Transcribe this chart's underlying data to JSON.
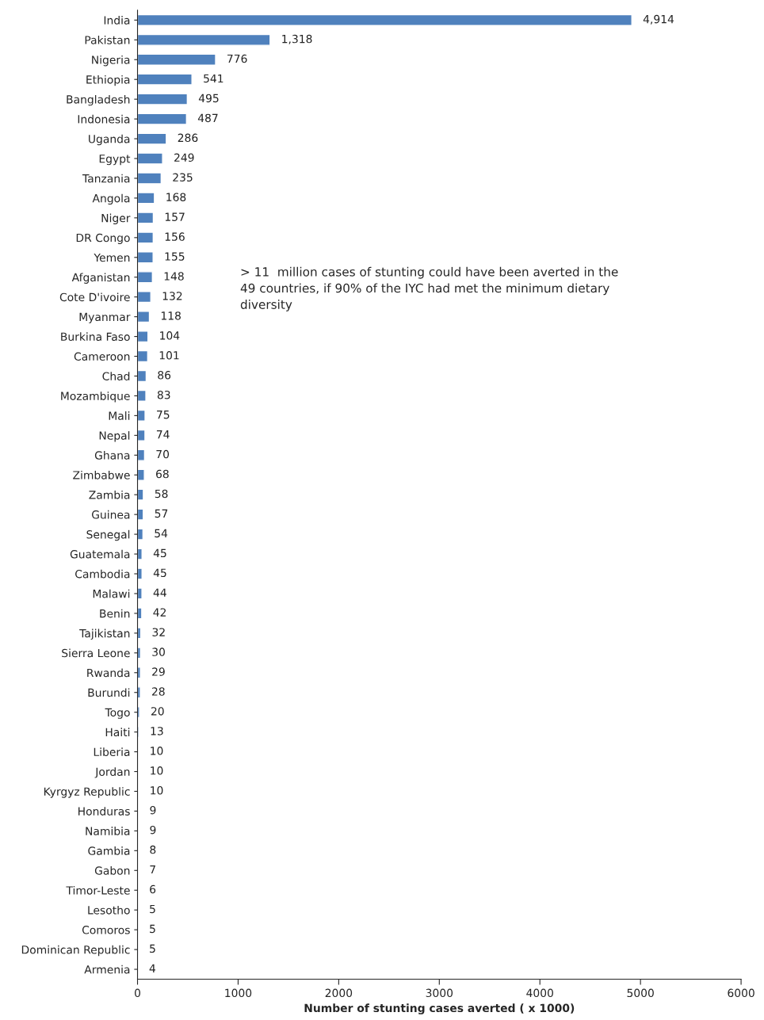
{
  "chart_data": {
    "type": "bar",
    "orientation": "horizontal",
    "xlabel": "Number of stunting cases averted ( x 1000)",
    "categories": [
      "India",
      "Pakistan",
      "Nigeria",
      "Ethiopia",
      "Bangladesh",
      "Indonesia",
      "Uganda",
      "Egypt",
      "Tanzania",
      "Angola",
      "Niger",
      "DR Congo",
      "Yemen",
      "Afganistan",
      "Cote D'ivoire",
      "Myanmar",
      "Burkina Faso",
      "Cameroon",
      "Chad",
      "Mozambique",
      "Mali",
      "Nepal",
      "Ghana",
      "Zimbabwe",
      "Zambia",
      "Guinea",
      "Senegal",
      "Guatemala",
      "Cambodia",
      "Malawi",
      "Benin",
      "Tajikistan",
      "Sierra Leone",
      "Rwanda",
      "Burundi",
      "Togo",
      "Haiti",
      "Liberia",
      "Jordan",
      "Kyrgyz Republic",
      "Honduras",
      "Namibia",
      "Gambia",
      "Gabon",
      "Timor-Leste",
      "Lesotho",
      "Comoros",
      "Dominican Republic",
      "Armenia"
    ],
    "values": [
      4914,
      1318,
      776,
      541,
      495,
      487,
      286,
      249,
      235,
      168,
      157,
      156,
      155,
      148,
      132,
      118,
      104,
      101,
      86,
      83,
      75,
      74,
      70,
      68,
      58,
      57,
      54,
      45,
      45,
      44,
      42,
      32,
      30,
      29,
      28,
      20,
      13,
      10,
      10,
      10,
      9,
      9,
      8,
      7,
      6,
      5,
      5,
      5,
      4
    ],
    "value_labels": [
      "4,914",
      "1,318",
      "776",
      "541",
      "495",
      "487",
      "286",
      "249",
      "235",
      "168",
      "157",
      "156",
      "155",
      "148",
      "132",
      "118",
      "104",
      "101",
      "86",
      "83",
      "75",
      "74",
      "70",
      "68",
      "58",
      "57",
      "54",
      "45",
      "45",
      "44",
      "42",
      "32",
      "30",
      "29",
      "28",
      "20",
      "13",
      "10",
      "10",
      "10",
      "9",
      "9",
      "8",
      "7",
      "6",
      "5",
      "5",
      "5",
      "4"
    ],
    "color": "#4f81bd",
    "xlim": [
      0,
      6000
    ],
    "xticks": [
      0,
      1000,
      2000,
      3000,
      4000,
      5000,
      6000
    ],
    "grid": false,
    "legend": false,
    "annotations": [
      "> 11  million cases of stunting could have been averted in the\n49 countries, if 90% of the IYC had met the minimum dietary\ndiversity"
    ]
  }
}
